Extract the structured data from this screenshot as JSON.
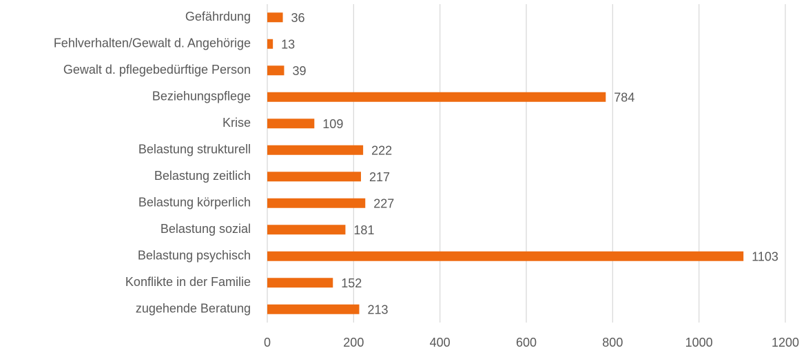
{
  "chart_data": {
    "type": "bar",
    "orientation": "horizontal",
    "categories": [
      "Gefährdung",
      "Fehlverhalten/Gewalt d. Angehörige",
      "Gewalt d. pflegebedürftige Person",
      "Beziehungspflege",
      "Krise",
      "Belastung strukturell",
      "Belastung zeitlich",
      "Belastung körperlich",
      "Belastung sozial",
      "Belastung psychisch",
      "Konflikte in der Familie",
      "zugehende Beratung"
    ],
    "values": [
      36,
      13,
      39,
      784,
      109,
      222,
      217,
      227,
      181,
      1103,
      152,
      213
    ],
    "color": "#ee6a10",
    "xlim": [
      0,
      1200
    ],
    "xticks": [
      0,
      200,
      400,
      600,
      800,
      1000,
      1200
    ],
    "grid": true
  }
}
